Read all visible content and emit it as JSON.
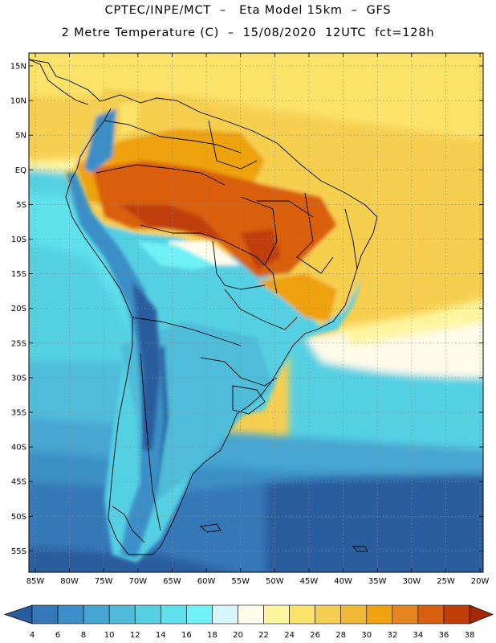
{
  "header": {
    "line1": "CPTEC/INPE/MCT  –   Eta Model 15km  –  GFS",
    "line2": "2 Metre Temperature (C)  –  15/08/2020  12UTC  fct=128h"
  },
  "map": {
    "lat_labels": [
      "15N",
      "10N",
      "5N",
      "EQ",
      "5S",
      "10S",
      "15S",
      "20S",
      "25S",
      "30S",
      "35S",
      "40S",
      "45S",
      "50S",
      "55S"
    ],
    "lon_labels": [
      "85W",
      "80W",
      "75W",
      "70W",
      "65W",
      "60W",
      "55W",
      "50W",
      "45W",
      "40W",
      "35W",
      "30W",
      "25W",
      "20W"
    ]
  },
  "colorbar": {
    "ticks": [
      "4",
      "6",
      "8",
      "10",
      "12",
      "14",
      "16",
      "18",
      "20",
      "22",
      "24",
      "26",
      "28",
      "30",
      "32",
      "34",
      "36",
      "38"
    ],
    "colors": [
      "#2a5d9e",
      "#3478b8",
      "#3a8fc6",
      "#46a6d2",
      "#4fbcd9",
      "#55d0e3",
      "#5fe1ec",
      "#6ff1f7",
      "#d6f6fc",
      "#fffbea",
      "#fff5a0",
      "#fbe36a",
      "#f7cf50",
      "#efb836",
      "#eea20f",
      "#e6851d",
      "#d95f0e",
      "#c03d08",
      "#a32a05"
    ]
  }
}
